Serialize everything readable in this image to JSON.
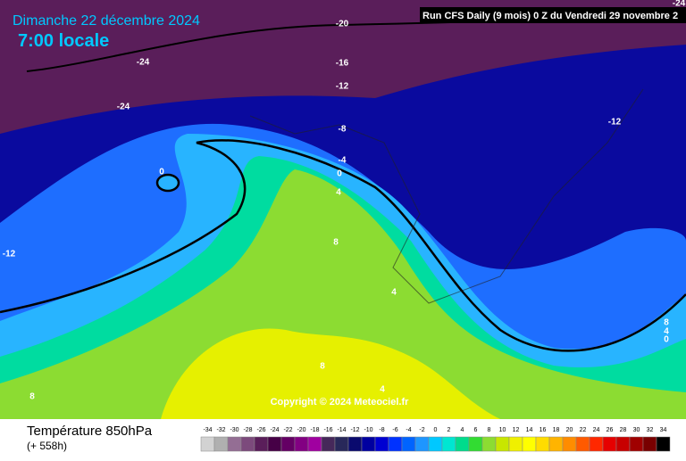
{
  "header": {
    "date": "Dimanche 22 décembre 2024",
    "time": "7:00 locale",
    "run": "Run CFS Daily (9 mois) 0 Z du Vendredi 29 novembre 2"
  },
  "map": {
    "contour_labels": [
      "-20",
      "-24",
      "-24",
      "-16",
      "-12",
      "-24",
      "-8",
      "-12",
      "-4",
      "0",
      "0",
      "4",
      "8",
      "-12",
      "4",
      "8",
      "4",
      "0",
      "8",
      "4",
      "8"
    ],
    "copyright": "Copyright © 2024 Meteociel.fr"
  },
  "footer": {
    "title": "Température 850hPa",
    "lead": "(+ 558h)"
  },
  "legend": {
    "values": [
      -34,
      -32,
      -30,
      -28,
      -26,
      -24,
      -22,
      -20,
      -18,
      -16,
      -14,
      -12,
      -10,
      -8,
      -6,
      -4,
      -2,
      0,
      2,
      4,
      6,
      8,
      10,
      12,
      14,
      16,
      18,
      20,
      22,
      24,
      26,
      28,
      30,
      32,
      34
    ],
    "colors": [
      "#d2d2d2",
      "#b0b0b0",
      "#946e94",
      "#7c4a7c",
      "#5a1e5a",
      "#460046",
      "#640064",
      "#820082",
      "#a000a0",
      "#46285a",
      "#28285a",
      "#0a0a6e",
      "#0000a0",
      "#0000d2",
      "#0032ff",
      "#0064ff",
      "#1e96ff",
      "#00c8ff",
      "#00e6d2",
      "#00dc8c",
      "#32dc32",
      "#8cdc32",
      "#c8e600",
      "#f0f000",
      "#ffff00",
      "#ffdc00",
      "#ffb400",
      "#ff8c00",
      "#ff5a00",
      "#ff2800",
      "#e60000",
      "#c80000",
      "#a00000",
      "#780000",
      "#000000"
    ]
  }
}
